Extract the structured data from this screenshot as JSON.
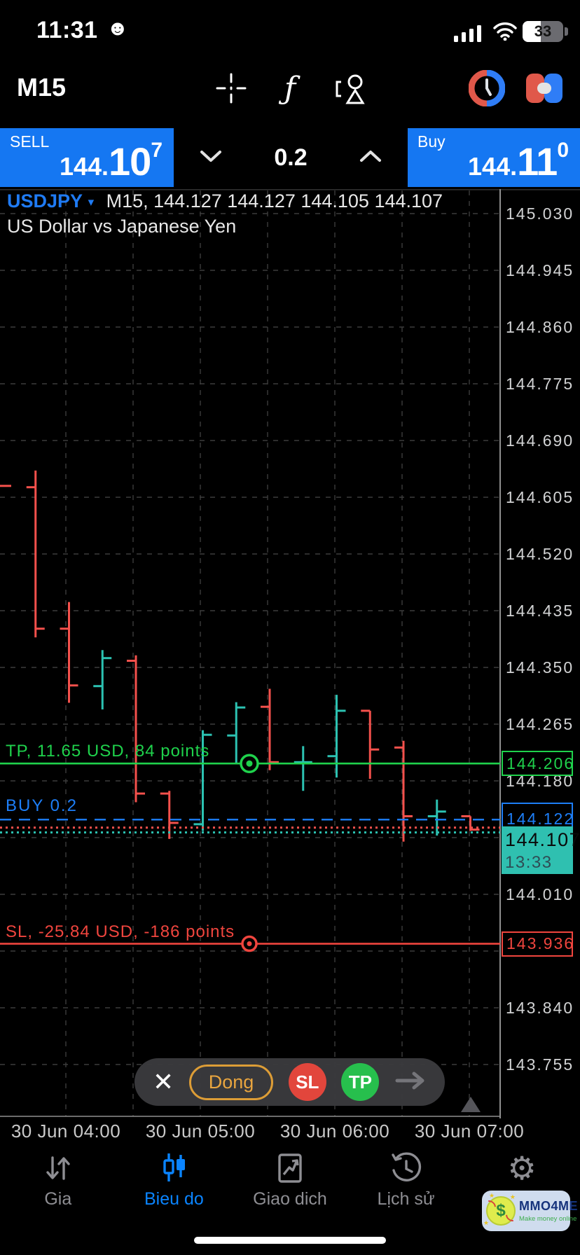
{
  "status_bar": {
    "time": "11:31",
    "emoji": "☻",
    "battery_percent": "33"
  },
  "toolbar": {
    "timeframe": "M15"
  },
  "trade_panel": {
    "sell": {
      "label": "SELL",
      "price_prefix": "144.",
      "price_big": "10",
      "price_sup": "7"
    },
    "volume": {
      "value": "0.2"
    },
    "buy": {
      "label": "Buy",
      "price_prefix": "144.",
      "price_big": "11",
      "price_sup": "0"
    }
  },
  "chart_header": {
    "symbol": "USDJPY",
    "dropdown": "▾",
    "ohlc_line": "M15, 144.127 144.127 144.105 144.107",
    "description": "US Dollar vs Japanese Yen"
  },
  "chart_data": {
    "type": "ohlc-bar",
    "title": "USDJPY M15",
    "grid": true,
    "ylim": [
      143.674,
      145.091
    ],
    "price_axis": {
      "step": 0.085,
      "ticks": [
        {
          "price": 145.03,
          "label": "145.030"
        },
        {
          "price": 144.945,
          "label": "144.945"
        },
        {
          "price": 144.86,
          "label": "144.860"
        },
        {
          "price": 144.775,
          "label": "144.775"
        },
        {
          "price": 144.69,
          "label": "144.690"
        },
        {
          "price": 144.605,
          "label": "144.605"
        },
        {
          "price": 144.52,
          "label": "144.520"
        },
        {
          "price": 144.435,
          "label": "144.435"
        },
        {
          "price": 144.35,
          "label": "144.350"
        },
        {
          "price": 144.265,
          "label": "144.265"
        },
        {
          "price": 144.18,
          "label": "144.180"
        },
        {
          "price": 144.095,
          "label": ""
        },
        {
          "price": 144.01,
          "label": "144.010"
        },
        {
          "price": 143.925,
          "label": "143.925",
          "behind_box": true
        },
        {
          "price": 143.84,
          "label": "143.840"
        },
        {
          "price": 143.755,
          "label": "143.755"
        }
      ]
    },
    "time_axis": [
      "30 Jun 04:00",
      "30 Jun 05:00",
      "30 Jun 06:00",
      "30 Jun 07:00"
    ],
    "bars": [
      {
        "partial": true,
        "c": 144.622,
        "dir": "down"
      },
      {
        "o": 144.62,
        "h": 144.645,
        "l": 144.395,
        "c": 144.408,
        "dir": "down"
      },
      {
        "o": 144.408,
        "h": 144.448,
        "l": 144.297,
        "c": 144.323,
        "dir": "down"
      },
      {
        "o": 144.322,
        "h": 144.376,
        "l": 144.287,
        "c": 144.364,
        "dir": "up"
      },
      {
        "o": 144.36,
        "h": 144.368,
        "l": 144.148,
        "c": 144.161,
        "dir": "down"
      },
      {
        "o": 144.161,
        "h": 144.165,
        "l": 144.093,
        "c": 144.117,
        "dir": "down"
      },
      {
        "o": 144.115,
        "h": 144.256,
        "l": 144.105,
        "c": 144.249,
        "dir": "up"
      },
      {
        "o": 144.248,
        "h": 144.298,
        "l": 144.206,
        "c": 144.29,
        "dir": "up"
      },
      {
        "o": 144.291,
        "h": 144.318,
        "l": 144.196,
        "c": 144.208,
        "dir": "down"
      },
      {
        "o": 144.208,
        "h": 144.232,
        "l": 144.165,
        "c": 144.208,
        "dir": "up"
      },
      {
        "o": 144.217,
        "h": 144.309,
        "l": 144.185,
        "c": 144.285,
        "dir": "up"
      },
      {
        "o": 144.285,
        "h": 144.285,
        "l": 144.183,
        "c": 144.227,
        "dir": "down"
      },
      {
        "o": 144.23,
        "h": 144.24,
        "l": 144.089,
        "c": 144.127,
        "dir": "down"
      },
      {
        "o": 144.127,
        "h": 144.152,
        "l": 144.098,
        "c": 144.134,
        "dir": "up"
      },
      {
        "o": 144.127,
        "h": 144.127,
        "l": 144.105,
        "c": 144.107,
        "dir": "down"
      }
    ],
    "levels": {
      "tp": {
        "price": 144.206,
        "text": "TP, 11.65 USD, 84 points",
        "axis_label": "144.206"
      },
      "position": {
        "price": 144.122,
        "text": "BUY 0.2",
        "axis_label": "144.122"
      },
      "ask": {
        "price": 144.11
      },
      "bid": {
        "price": 144.107,
        "axis_label": "144.107",
        "time_label": "13:33"
      },
      "sl": {
        "price": 143.936,
        "text": "SL, -25.84 USD, -186 points",
        "axis_label": "143.936"
      }
    },
    "colors": {
      "up": "#2cc2b2",
      "down": "#f4514c",
      "tp": "#1fd24c",
      "sl": "#f0453e",
      "position": "#1d7ef7",
      "grid": "#3c3c3c",
      "axis": "#8f8f8f"
    }
  },
  "order_toolbar": {
    "close_icon": "✕",
    "close_label": "Dong",
    "sl_label": "SL",
    "tp_label": "TP"
  },
  "tab_bar": {
    "items": [
      {
        "label": "Gia",
        "icon": "price-arrows-icon",
        "active": false
      },
      {
        "label": "Bieu do",
        "icon": "chart-candles-icon",
        "active": true
      },
      {
        "label": "Giao dich",
        "icon": "trade-chart-icon",
        "active": false
      },
      {
        "label": "Lịch sử",
        "icon": "history-clock-icon",
        "active": false
      },
      {
        "label": "Cai dat",
        "icon": "gear-icon",
        "active": false
      }
    ]
  },
  "watermark": {
    "symbol": "$",
    "brand": "MMO4ME",
    "tagline": "Make money online"
  }
}
